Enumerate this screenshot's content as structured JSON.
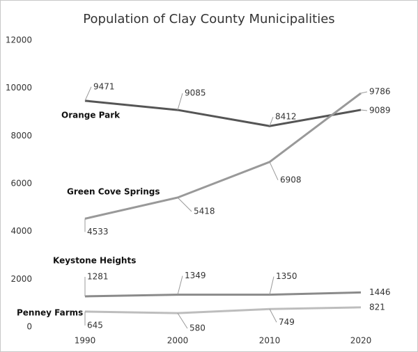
{
  "chart_data": {
    "type": "line",
    "title": "Population of Clay County Municipalities",
    "categories": [
      "1990",
      "2000",
      "2010",
      "2020"
    ],
    "series": [
      {
        "name": "Orange Park",
        "color": "#555555",
        "values": [
          9471,
          9085,
          8412,
          9089
        ]
      },
      {
        "name": "Green Cove Springs",
        "color": "#999999",
        "values": [
          4533,
          5418,
          6908,
          9786
        ]
      },
      {
        "name": "Keystone Heights",
        "color": "#8a8a8a",
        "values": [
          1281,
          1349,
          1350,
          1446
        ]
      },
      {
        "name": "Penney Farms",
        "color": "#bdbdbd",
        "values": [
          645,
          580,
          749,
          821
        ]
      }
    ],
    "ylim": [
      0,
      12000
    ],
    "yticks": [
      0,
      2000,
      4000,
      6000,
      8000,
      10000,
      12000
    ],
    "grid": false
  }
}
